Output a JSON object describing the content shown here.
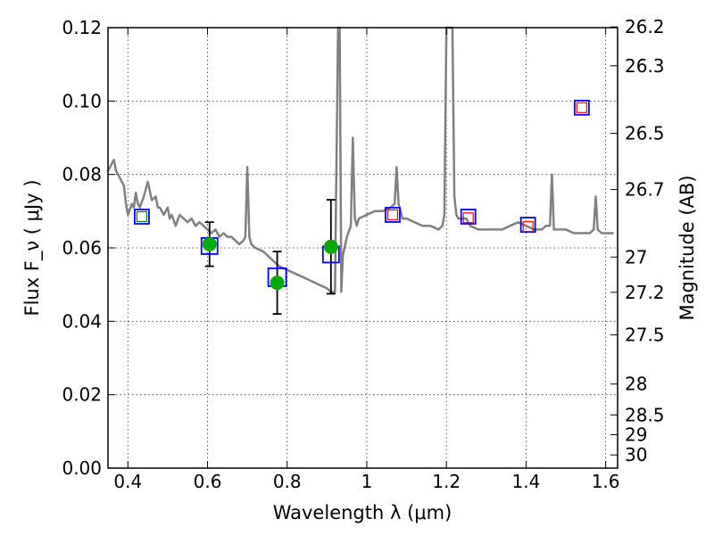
{
  "chart_data": {
    "type": "scatter",
    "xlabel": "Wavelength  λ (μm)",
    "ylabel": "Flux  F_ν  ( μJy )",
    "y2label": "Magnitude (AB)",
    "xlim": [
      0.35,
      1.63
    ],
    "ylim": [
      0.0,
      0.12
    ],
    "grid": true,
    "x_ticks": [
      0.4,
      0.6,
      0.8,
      1.0,
      1.2,
      1.4,
      1.6
    ],
    "x_tick_labels": [
      "0.4",
      "0.6",
      "0.8",
      "1",
      "1.2",
      "1.4",
      "1.6"
    ],
    "y_ticks": [
      0.0,
      0.02,
      0.04,
      0.06,
      0.08,
      0.1,
      0.12
    ],
    "y_tick_labels": [
      "0.00",
      "0.02",
      "0.04",
      "0.06",
      "0.08",
      "0.10",
      "0.12"
    ],
    "y2_ticks": [
      {
        "label": "26.2",
        "flux": 0.1202
      },
      {
        "label": "26.3",
        "flux": 0.1096
      },
      {
        "label": "26.5",
        "flux": 0.0912
      },
      {
        "label": "26.7",
        "flux": 0.0759
      },
      {
        "label": "27",
        "flux": 0.0575
      },
      {
        "label": "27.2",
        "flux": 0.0479
      },
      {
        "label": "27.5",
        "flux": 0.0363
      },
      {
        "label": "28",
        "flux": 0.0229
      },
      {
        "label": "28.5",
        "flux": 0.0145
      },
      {
        "label": "29",
        "flux": 0.0091
      },
      {
        "label": "30",
        "flux": 0.0036
      }
    ],
    "series": [
      {
        "kind": "model_spectrum",
        "color": "#808080",
        "x": [
          0.35,
          0.36,
          0.365,
          0.37,
          0.38,
          0.39,
          0.395,
          0.4,
          0.41,
          0.415,
          0.42,
          0.425,
          0.43,
          0.44,
          0.45,
          0.46,
          0.47,
          0.475,
          0.48,
          0.49,
          0.5,
          0.505,
          0.51,
          0.52,
          0.53,
          0.54,
          0.55,
          0.56,
          0.57,
          0.58,
          0.59,
          0.6,
          0.61,
          0.62,
          0.63,
          0.64,
          0.65,
          0.66,
          0.67,
          0.68,
          0.69,
          0.695,
          0.7,
          0.705,
          0.71,
          0.72,
          0.74,
          0.76,
          0.78,
          0.8,
          0.82,
          0.84,
          0.86,
          0.88,
          0.9,
          0.91,
          0.92,
          0.928,
          0.932,
          0.936,
          0.94,
          0.95,
          0.96,
          0.965,
          0.97,
          0.975,
          0.98,
          1.0,
          1.02,
          1.04,
          1.06,
          1.07,
          1.075,
          1.08,
          1.09,
          1.1,
          1.12,
          1.14,
          1.16,
          1.18,
          1.19,
          1.195,
          1.2,
          1.205,
          1.21,
          1.215,
          1.22,
          1.225,
          1.23,
          1.24,
          1.25,
          1.26,
          1.28,
          1.3,
          1.32,
          1.34,
          1.36,
          1.38,
          1.4,
          1.42,
          1.44,
          1.45,
          1.46,
          1.465,
          1.47,
          1.48,
          1.5,
          1.52,
          1.54,
          1.56,
          1.57,
          1.575,
          1.58,
          1.59,
          1.6,
          1.61,
          1.62
        ],
        "y": [
          0.081,
          0.083,
          0.084,
          0.081,
          0.079,
          0.077,
          0.072,
          0.069,
          0.072,
          0.071,
          0.075,
          0.072,
          0.071,
          0.074,
          0.078,
          0.073,
          0.074,
          0.071,
          0.071,
          0.069,
          0.071,
          0.068,
          0.069,
          0.066,
          0.069,
          0.068,
          0.067,
          0.068,
          0.066,
          0.067,
          0.066,
          0.065,
          0.064,
          0.065,
          0.063,
          0.064,
          0.063,
          0.063,
          0.062,
          0.061,
          0.062,
          0.063,
          0.082,
          0.063,
          0.061,
          0.06,
          0.059,
          0.057,
          0.055,
          0.054,
          0.053,
          0.052,
          0.051,
          0.05,
          0.049,
          0.048,
          0.048,
          0.122,
          0.122,
          0.048,
          0.058,
          0.063,
          0.066,
          0.09,
          0.068,
          0.066,
          0.068,
          0.069,
          0.07,
          0.07,
          0.071,
          0.072,
          0.082,
          0.072,
          0.068,
          0.068,
          0.067,
          0.066,
          0.066,
          0.065,
          0.066,
          0.069,
          0.122,
          0.122,
          0.122,
          0.122,
          0.074,
          0.069,
          0.068,
          0.068,
          0.068,
          0.066,
          0.065,
          0.065,
          0.065,
          0.065,
          0.066,
          0.067,
          0.066,
          0.065,
          0.065,
          0.066,
          0.066,
          0.08,
          0.065,
          0.065,
          0.065,
          0.064,
          0.064,
          0.064,
          0.065,
          0.074,
          0.065,
          0.064,
          0.064,
          0.064,
          0.064
        ]
      },
      {
        "kind": "observed",
        "color": "#00aa00",
        "x": [
          0.605,
          0.775,
          0.91
        ],
        "y": [
          0.061,
          0.0505,
          0.0603
        ],
        "yerr": [
          0.006,
          0.0085,
          0.0128
        ]
      },
      {
        "kind": "model_photometry",
        "color": "#0000ff",
        "x": [
          0.435,
          0.605,
          0.775,
          0.91,
          1.065,
          1.255,
          1.405,
          1.54
        ],
        "y": [
          0.0685,
          0.0605,
          0.052,
          0.0582,
          0.069,
          0.0685,
          0.0663,
          0.0982
        ]
      },
      {
        "kind": "inner_square",
        "color": "#008000",
        "x": [
          0.435
        ],
        "y": [
          0.0685
        ]
      },
      {
        "kind": "inner_square",
        "color": "#ff0000",
        "x": [
          1.065,
          1.255,
          1.405,
          1.54
        ],
        "y": [
          0.069,
          0.0682,
          0.0658,
          0.0982
        ]
      }
    ]
  }
}
